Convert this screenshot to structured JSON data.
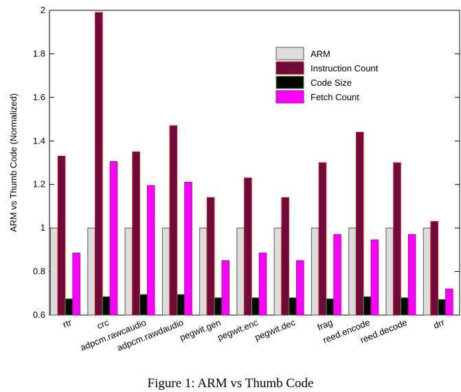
{
  "caption": "Figure 1: ARM vs Thumb Code",
  "chart_data": {
    "type": "bar",
    "title": "",
    "xlabel": "",
    "ylabel": "ARM vs Thumb Code (Normalized)",
    "ylim": [
      0.6,
      2
    ],
    "yticks": [
      0.6,
      0.8,
      1,
      1.2,
      1.4,
      1.6,
      1.8,
      2
    ],
    "ytick_labels": [
      "0.6",
      "0.8",
      "1",
      "1.2",
      "1.4",
      "1.6",
      "1.8",
      "2"
    ],
    "grid": false,
    "legend_position": "top-right",
    "categories": [
      "rtr",
      "crc",
      "adpcm.rawcaudio",
      "adpcm.rawdaudio",
      "pegwit.gen",
      "pegwit.enc",
      "pegwit.dec",
      "frag",
      "reed.encode",
      "reed.decode",
      "drr"
    ],
    "series": [
      {
        "name": "ARM",
        "fill": "#dcdcdc",
        "stroke": "#555555",
        "values": [
          1,
          1,
          1,
          1,
          1,
          1,
          1,
          1,
          1,
          1,
          1
        ]
      },
      {
        "name": "Instruction Count",
        "fill": "#6e0a3c",
        "stroke": "#d01010",
        "values": [
          1.33,
          1.99,
          1.35,
          1.47,
          1.14,
          1.23,
          1.14,
          1.3,
          1.44,
          1.3,
          1.03
        ]
      },
      {
        "name": "Code Size",
        "fill": "#000000",
        "stroke": "#18b018",
        "values": [
          0.675,
          0.685,
          0.695,
          0.695,
          0.68,
          0.68,
          0.68,
          0.675,
          0.685,
          0.68,
          0.672
        ]
      },
      {
        "name": "Fetch Count",
        "fill": "#ff00ff",
        "stroke": "#aa00aa",
        "values": [
          0.885,
          1.305,
          1.195,
          1.21,
          0.85,
          0.885,
          0.85,
          0.97,
          0.945,
          0.97,
          0.72
        ]
      }
    ]
  }
}
